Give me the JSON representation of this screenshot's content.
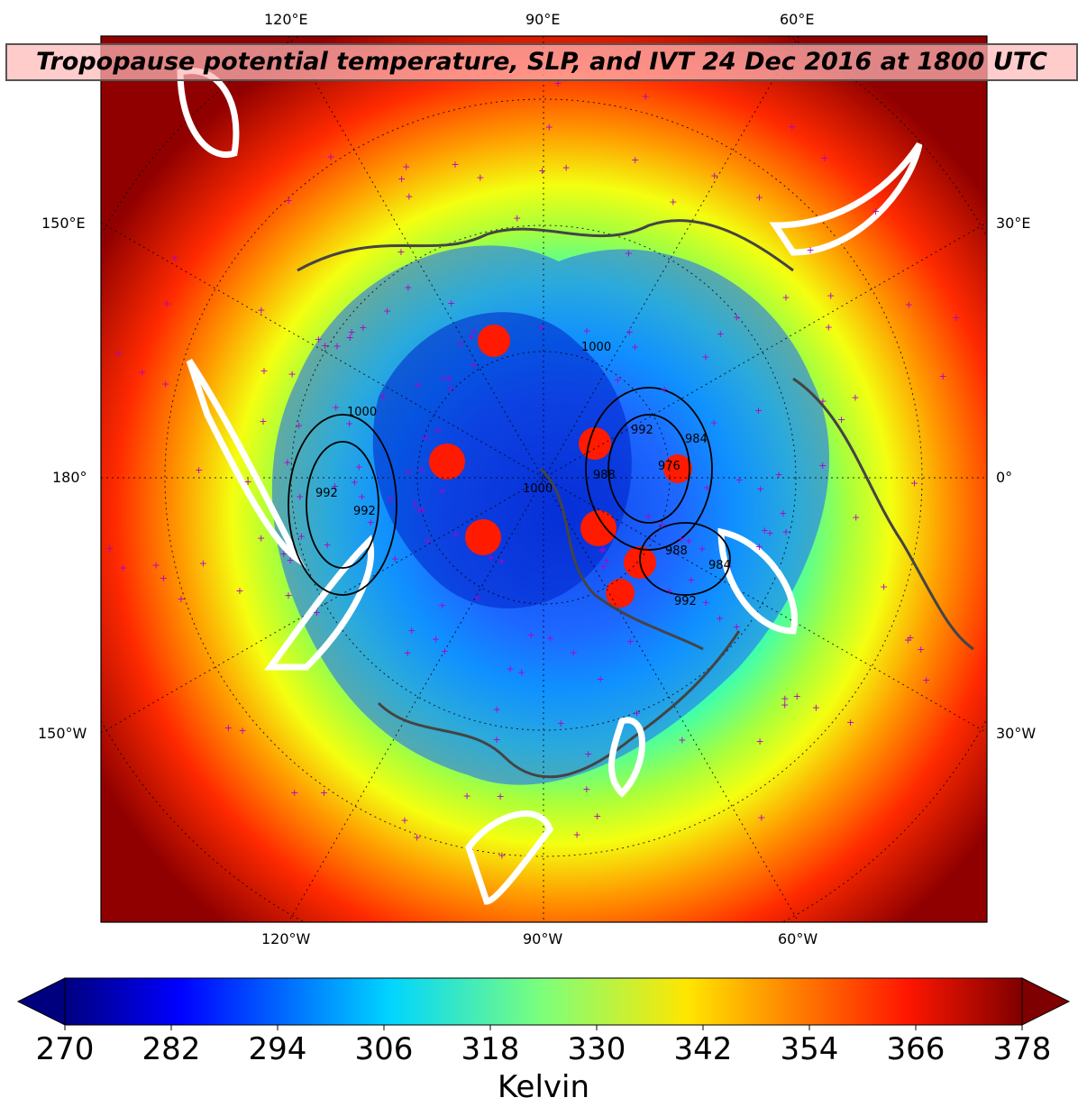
{
  "title": "Tropopause potential temperature, SLP, and IVT 24 Dec 2016 at 1800 UTC",
  "longitude_labels": {
    "top": [
      "120°E",
      "90°E",
      "60°E"
    ],
    "bottom": [
      "120°W",
      "90°W",
      "60°W"
    ],
    "left": [
      "150°E",
      "180°",
      "150°W"
    ],
    "right": [
      "30°E",
      "0°",
      "30°W"
    ]
  },
  "slp_contour_labels": [
    "1000",
    "1000",
    "1000",
    "992",
    "988",
    "992",
    "984",
    "992",
    "976",
    "988",
    "992",
    "984"
  ],
  "colorbar": {
    "label": "Kelvin",
    "min": 270,
    "max": 378,
    "ticks": [
      "270",
      "282",
      "294",
      "306",
      "318",
      "330",
      "342",
      "354",
      "366",
      "378"
    ],
    "colormap": "jet",
    "extend": "both"
  },
  "colors": {
    "coast": "#444444",
    "ivt_contour": "#ffffff",
    "station_marker": "#b000c8",
    "slp_contour": "#000000",
    "low_pv_blob": "#ff1a00"
  }
}
